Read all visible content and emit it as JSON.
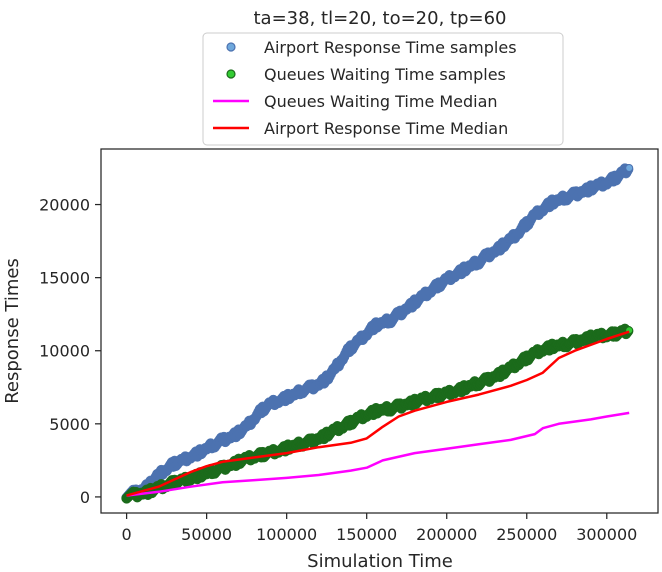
{
  "chart_data": {
    "type": "scatter",
    "title": "ta=38, tl=20, to=20, tp=60",
    "xlabel": "Simulation Time",
    "ylabel": "Response Times",
    "xlim": [
      -16000,
      332000
    ],
    "ylim": [
      -1100,
      23800
    ],
    "xticks": [
      0,
      50000,
      100000,
      150000,
      200000,
      250000,
      300000
    ],
    "yticks": [
      0,
      5000,
      10000,
      15000,
      20000
    ],
    "grid": false,
    "legend_position": "above plot, centered",
    "series": [
      {
        "name": "Airport Response Time samples",
        "kind": "scatter",
        "color": "#4c72b0",
        "last_point_color": "#6fa8dc",
        "points": [
          [
            0,
            150
          ],
          [
            5000,
            300
          ],
          [
            10000,
            500
          ],
          [
            15000,
            900
          ],
          [
            20000,
            1500
          ],
          [
            25000,
            1900
          ],
          [
            30000,
            2300
          ],
          [
            35000,
            2500
          ],
          [
            40000,
            2800
          ],
          [
            45000,
            3000
          ],
          [
            50000,
            3300
          ],
          [
            55000,
            3600
          ],
          [
            60000,
            3900
          ],
          [
            65000,
            4100
          ],
          [
            70000,
            4400
          ],
          [
            75000,
            4800
          ],
          [
            80000,
            5400
          ],
          [
            85000,
            6000
          ],
          [
            90000,
            6400
          ],
          [
            95000,
            6600
          ],
          [
            100000,
            6800
          ],
          [
            105000,
            7000
          ],
          [
            110000,
            7300
          ],
          [
            115000,
            7500
          ],
          [
            120000,
            7700
          ],
          [
            125000,
            8100
          ],
          [
            130000,
            8700
          ],
          [
            135000,
            9500
          ],
          [
            140000,
            10200
          ],
          [
            145000,
            10700
          ],
          [
            150000,
            11200
          ],
          [
            155000,
            11700
          ],
          [
            160000,
            11900
          ],
          [
            165000,
            12100
          ],
          [
            170000,
            12500
          ],
          [
            175000,
            12900
          ],
          [
            180000,
            13300
          ],
          [
            185000,
            13700
          ],
          [
            190000,
            14100
          ],
          [
            195000,
            14500
          ],
          [
            200000,
            14900
          ],
          [
            205000,
            15200
          ],
          [
            210000,
            15500
          ],
          [
            215000,
            15800
          ],
          [
            220000,
            16100
          ],
          [
            225000,
            16500
          ],
          [
            230000,
            16800
          ],
          [
            235000,
            17200
          ],
          [
            240000,
            17600
          ],
          [
            245000,
            18100
          ],
          [
            250000,
            18700
          ],
          [
            255000,
            19300
          ],
          [
            260000,
            19700
          ],
          [
            265000,
            20100
          ],
          [
            270000,
            20300
          ],
          [
            275000,
            20500
          ],
          [
            280000,
            20700
          ],
          [
            285000,
            20900
          ],
          [
            290000,
            21100
          ],
          [
            295000,
            21300
          ],
          [
            300000,
            21500
          ],
          [
            305000,
            21800
          ],
          [
            310000,
            22200
          ],
          [
            314000,
            22500
          ]
        ]
      },
      {
        "name": "Queues Waiting Time samples",
        "kind": "scatter",
        "color": "#1b6b1b",
        "last_point_color": "#33cc33",
        "points": [
          [
            0,
            100
          ],
          [
            5000,
            150
          ],
          [
            10000,
            250
          ],
          [
            15000,
            400
          ],
          [
            20000,
            600
          ],
          [
            25000,
            800
          ],
          [
            30000,
            1000
          ],
          [
            35000,
            1150
          ],
          [
            40000,
            1300
          ],
          [
            45000,
            1450
          ],
          [
            50000,
            1600
          ],
          [
            55000,
            1800
          ],
          [
            60000,
            2000
          ],
          [
            65000,
            2200
          ],
          [
            70000,
            2400
          ],
          [
            75000,
            2600
          ],
          [
            80000,
            2750
          ],
          [
            85000,
            2900
          ],
          [
            90000,
            3050
          ],
          [
            95000,
            3200
          ],
          [
            100000,
            3350
          ],
          [
            105000,
            3500
          ],
          [
            110000,
            3650
          ],
          [
            115000,
            3800
          ],
          [
            120000,
            4000
          ],
          [
            125000,
            4250
          ],
          [
            130000,
            4550
          ],
          [
            135000,
            4800
          ],
          [
            140000,
            5100
          ],
          [
            145000,
            5400
          ],
          [
            150000,
            5650
          ],
          [
            155000,
            5850
          ],
          [
            160000,
            5950
          ],
          [
            165000,
            6050
          ],
          [
            170000,
            6200
          ],
          [
            175000,
            6350
          ],
          [
            180000,
            6500
          ],
          [
            185000,
            6650
          ],
          [
            190000,
            6800
          ],
          [
            195000,
            6950
          ],
          [
            200000,
            7100
          ],
          [
            205000,
            7250
          ],
          [
            210000,
            7400
          ],
          [
            215000,
            7600
          ],
          [
            220000,
            7800
          ],
          [
            225000,
            8000
          ],
          [
            230000,
            8250
          ],
          [
            235000,
            8500
          ],
          [
            240000,
            8800
          ],
          [
            245000,
            9150
          ],
          [
            250000,
            9500
          ],
          [
            255000,
            9850
          ],
          [
            260000,
            10100
          ],
          [
            265000,
            10250
          ],
          [
            270000,
            10350
          ],
          [
            275000,
            10450
          ],
          [
            280000,
            10600
          ],
          [
            285000,
            10750
          ],
          [
            290000,
            10900
          ],
          [
            295000,
            11000
          ],
          [
            300000,
            11050
          ],
          [
            305000,
            11150
          ],
          [
            310000,
            11300
          ],
          [
            314000,
            11400
          ]
        ]
      },
      {
        "name": "Queues Waiting Time Median",
        "kind": "line",
        "color": "#ff00ff",
        "points": [
          [
            0,
            100
          ],
          [
            20000,
            350
          ],
          [
            40000,
            700
          ],
          [
            60000,
            1000
          ],
          [
            80000,
            1150
          ],
          [
            100000,
            1300
          ],
          [
            120000,
            1500
          ],
          [
            140000,
            1800
          ],
          [
            150000,
            2000
          ],
          [
            160000,
            2500
          ],
          [
            180000,
            3000
          ],
          [
            200000,
            3300
          ],
          [
            220000,
            3600
          ],
          [
            240000,
            3900
          ],
          [
            255000,
            4300
          ],
          [
            260000,
            4700
          ],
          [
            270000,
            5000
          ],
          [
            290000,
            5300
          ],
          [
            300000,
            5500
          ],
          [
            314000,
            5750
          ]
        ]
      },
      {
        "name": "Airport Response Time Median",
        "kind": "line",
        "color": "#ff0000",
        "points": [
          [
            0,
            100
          ],
          [
            20000,
            700
          ],
          [
            30000,
            1200
          ],
          [
            40000,
            1700
          ],
          [
            50000,
            2100
          ],
          [
            60000,
            2400
          ],
          [
            80000,
            2700
          ],
          [
            100000,
            3000
          ],
          [
            120000,
            3400
          ],
          [
            140000,
            3700
          ],
          [
            150000,
            4000
          ],
          [
            160000,
            4800
          ],
          [
            170000,
            5500
          ],
          [
            180000,
            5900
          ],
          [
            190000,
            6200
          ],
          [
            200000,
            6500
          ],
          [
            220000,
            7000
          ],
          [
            240000,
            7600
          ],
          [
            250000,
            8000
          ],
          [
            260000,
            8500
          ],
          [
            270000,
            9500
          ],
          [
            280000,
            10000
          ],
          [
            300000,
            10800
          ],
          [
            314000,
            11300
          ]
        ]
      }
    ]
  }
}
